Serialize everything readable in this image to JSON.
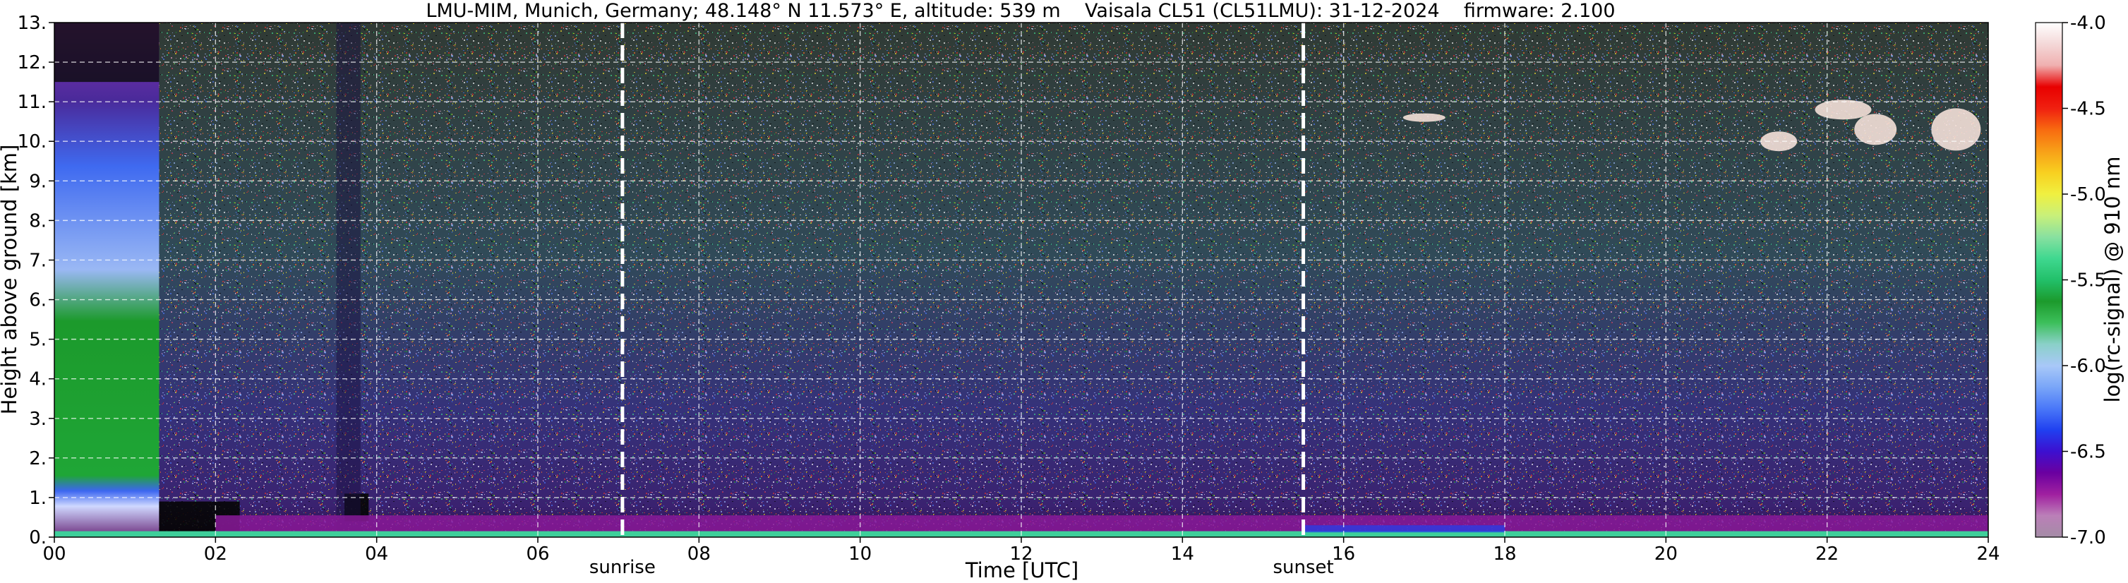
{
  "chart_data": {
    "type": "heatmap",
    "title": "LMU-MIM, Munich, Germany; 48.148° N 11.573° E, altitude: 539 m    Vaisala CL51 (CL51LMU): 31-12-2024    firmware: 2.100",
    "xlabel": "Time [UTC]",
    "ylabel": "Height above ground [km]",
    "xlim": [
      0,
      24
    ],
    "ylim": [
      0,
      13
    ],
    "xticks": [
      "00",
      "02",
      "04",
      "06",
      "08",
      "10",
      "12",
      "14",
      "16",
      "18",
      "20",
      "22",
      "24"
    ],
    "yticks": [
      "0.",
      "1.",
      "2.",
      "3.",
      "4.",
      "5.",
      "6.",
      "7.",
      "8.",
      "9.",
      "10.",
      "11.",
      "12.",
      "13."
    ],
    "grid": true,
    "markers": [
      {
        "label": "sunrise",
        "time": 7.05
      },
      {
        "label": "sunset",
        "time": 15.5
      }
    ],
    "colorbar": {
      "label": "log(rc-signal) @ 910 nm",
      "range": [
        -7.0,
        -4.0
      ],
      "ticks": [
        "-4.0",
        "-4.5",
        "-5.0",
        "-5.5",
        "-6.0",
        "-6.5",
        "-7.0"
      ],
      "colors": [
        "#a48ca6",
        "#bb7fb8",
        "#a020a0",
        "#6a00a0",
        "#3c10d0",
        "#2040f0",
        "#4a78f8",
        "#7aa6f8",
        "#a8c8f8",
        "#8ad0c8",
        "#3cbf5a",
        "#1c9a2c",
        "#22c06a",
        "#40d890",
        "#88e0a0",
        "#c8f07a",
        "#f0f040",
        "#f8d020",
        "#f8a018",
        "#f86a10",
        "#f02010",
        "#e80000",
        "#f0b0b0",
        "#f4d8d8",
        "#ffffff"
      ]
    }
  }
}
